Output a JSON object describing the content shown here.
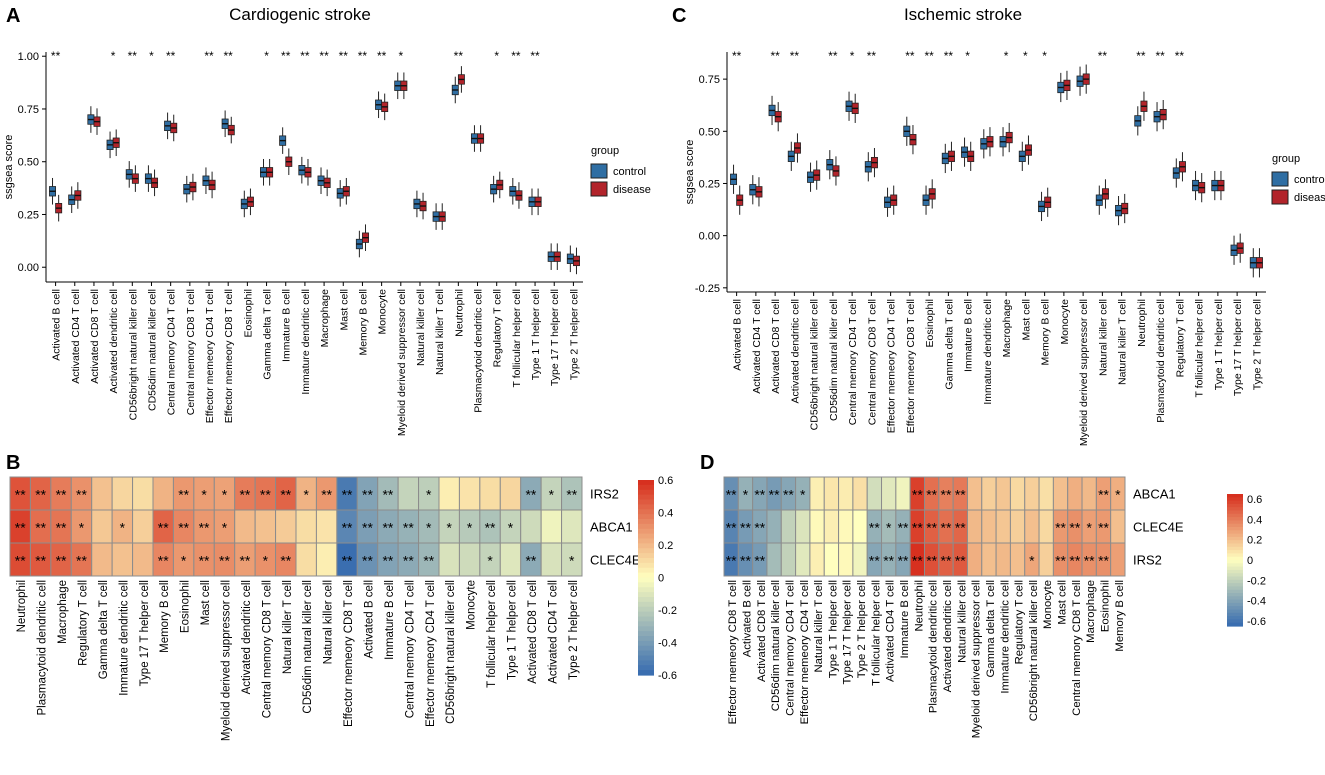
{
  "colors": {
    "control": "#2f6ea3",
    "disease": "#b2242b",
    "heat_high": "#d7301f",
    "heat_mid": "#ffffbf",
    "heat_low": "#3a6eb0",
    "grid": "#8c8c8c"
  },
  "chart_data": [
    {
      "panel_letter": "A",
      "type": "box",
      "title": "Cardiogenic stroke",
      "xlabel": "",
      "ylabel": "ssgsea score",
      "ylim": [
        -0.07,
        1.02
      ],
      "yticks": [
        "0.00",
        "0.25",
        "0.50",
        "0.75",
        "1.00"
      ],
      "legend": {
        "title": "group",
        "items": [
          "control",
          "disease"
        ],
        "position": "right"
      },
      "categories": [
        "Activated B cell",
        "Activated CD4 T cell",
        "Activated CD8 T cell",
        "Activated dendritic cell",
        "CD56bright natural killer cell",
        "CD56dim natural killer cell",
        "Central memory CD4 T cell",
        "Central memory CD8 T cell",
        "Effector memeory CD4 T cell",
        "Effector memeory CD8 T cell",
        "Eosinophil",
        "Gamma delta T cell",
        "Immature  B cell",
        "Immature dendritic cell",
        "Macrophage",
        "Mast cell",
        "Memory B cell",
        "Monocyte",
        "Myeloid derived suppressor cell",
        "Natural killer cell",
        "Natural killer T cell",
        "Neutrophil",
        "Plasmacytoid dendritic cell",
        "Regulatory T cell",
        "T follicular helper cell",
        "Type 1 T helper cell",
        "Type 17 T helper cell",
        "Type 2 T helper cell"
      ],
      "significance": [
        "**",
        "",
        "",
        "*",
        "**",
        "*",
        "**",
        "",
        "**",
        "**",
        "",
        "*",
        "**",
        "**",
        "**",
        "**",
        "**",
        "**",
        "*",
        "",
        "",
        "**",
        "",
        "*",
        "**",
        "**",
        "",
        ""
      ],
      "series": [
        {
          "name": "control",
          "values": [
            0.36,
            0.32,
            0.7,
            0.58,
            0.44,
            0.42,
            0.67,
            0.37,
            0.41,
            0.68,
            0.3,
            0.45,
            0.6,
            0.46,
            0.41,
            0.35,
            0.11,
            0.77,
            0.86,
            0.3,
            0.24,
            0.84,
            0.61,
            0.37,
            0.36,
            0.31,
            0.05,
            0.04
          ]
        },
        {
          "name": "disease",
          "values": [
            0.28,
            0.34,
            0.69,
            0.59,
            0.42,
            0.4,
            0.66,
            0.38,
            0.39,
            0.65,
            0.31,
            0.45,
            0.5,
            0.45,
            0.4,
            0.36,
            0.14,
            0.76,
            0.86,
            0.29,
            0.24,
            0.89,
            0.61,
            0.39,
            0.34,
            0.31,
            0.05,
            0.03
          ]
        }
      ]
    },
    {
      "panel_letter": "C",
      "type": "box",
      "title": "Ischemic stroke",
      "xlabel": "",
      "ylabel": "ssgsea score",
      "ylim": [
        -0.27,
        0.88
      ],
      "yticks": [
        "-0.25",
        "0.00",
        "0.25",
        "0.50",
        "0.75"
      ],
      "legend": {
        "title": "group",
        "items": [
          "control",
          "disease"
        ],
        "position": "right"
      },
      "categories": [
        "Activated B cell",
        "Activated CD4 T cell",
        "Activated CD8 T cell",
        "Activated dendritic cell",
        "CD56bright natural killer cell",
        "CD56dim natural killer cell",
        "Central memory CD4 T cell",
        "Central memory CD8 T cell",
        "Effector memeory CD4 T cell",
        "Effector memeory CD8 T cell",
        "Eosinophil",
        "Gamma delta T cell",
        "Immature  B cell",
        "Immature dendritic cell",
        "Macrophage",
        "Mast cell",
        "Memory B cell",
        "Monocyte",
        "Myeloid derived suppressor cell",
        "Natural killer cell",
        "Natural killer T cell",
        "Neutrophil",
        "Plasmacytoid dendritic cell",
        "Regulatory T cell",
        "T follicular helper cell",
        "Type 1 T helper cell",
        "Type 17 T helper cell",
        "Type 2 T helper cell"
      ],
      "significance": [
        "**",
        "",
        "**",
        "**",
        "",
        "**",
        "*",
        "**",
        "",
        "**",
        "**",
        "**",
        "*",
        "",
        "*",
        "*",
        "*",
        "",
        "",
        "**",
        "",
        "**",
        "**",
        "**",
        "",
        "",
        "",
        ""
      ],
      "series": [
        {
          "name": "control",
          "values": [
            0.27,
            0.22,
            0.6,
            0.38,
            0.28,
            0.34,
            0.62,
            0.33,
            0.16,
            0.5,
            0.17,
            0.37,
            0.4,
            0.44,
            0.45,
            0.38,
            0.14,
            0.71,
            0.74,
            0.17,
            0.12,
            0.55,
            0.57,
            0.3,
            0.24,
            0.24,
            -0.07,
            -0.13
          ]
        },
        {
          "name": "disease",
          "values": [
            0.17,
            0.21,
            0.57,
            0.42,
            0.29,
            0.31,
            0.61,
            0.35,
            0.17,
            0.46,
            0.2,
            0.38,
            0.38,
            0.45,
            0.47,
            0.41,
            0.16,
            0.72,
            0.75,
            0.2,
            0.13,
            0.62,
            0.58,
            0.33,
            0.23,
            0.24,
            -0.06,
            -0.13
          ]
        }
      ]
    },
    {
      "panel_letter": "B",
      "type": "heatmap",
      "title": "",
      "rows": [
        "IRS2",
        "ABCA1",
        "CLEC4E"
      ],
      "columns": [
        "Neutrophil",
        "Plasmacytoid dendritic cell",
        "Macrophage",
        "Regulatory T cell",
        "Gamma delta T cell",
        "Immature dendritic cell",
        "Type 17 T helper cell",
        "Memory B cell",
        "Eosinophil",
        "Mast cell",
        "Myeloid derived suppressor cell",
        "Activated dendritic cell",
        "Central memory CD8 T cell",
        "Natural killer T cell",
        "CD56dim natural killer cell",
        "Natural killer cell",
        "Effector memeory CD8 T cell",
        "Activated B cell",
        "Immature  B cell",
        "Central memory CD4 T cell",
        "Effector memeory CD4 T cell",
        "CD56bright natural killer cell",
        "Monocyte",
        "T follicular helper cell",
        "Type 1 T helper cell",
        "Activated CD8 T cell",
        "Activated CD4 T cell",
        "Type 2 T helper cell"
      ],
      "values": [
        [
          0.5,
          0.45,
          0.38,
          0.32,
          0.18,
          0.12,
          0.1,
          0.22,
          0.3,
          0.28,
          0.27,
          0.38,
          0.4,
          0.45,
          0.22,
          0.3,
          -0.55,
          -0.38,
          -0.28,
          -0.18,
          -0.2,
          0.05,
          0.08,
          0.1,
          0.12,
          -0.35,
          -0.18,
          -0.25
        ],
        [
          0.55,
          0.42,
          0.4,
          0.3,
          0.16,
          0.22,
          0.14,
          0.45,
          0.35,
          0.3,
          0.28,
          0.2,
          0.18,
          0.15,
          0.1,
          0.08,
          -0.5,
          -0.4,
          -0.35,
          -0.32,
          -0.28,
          -0.18,
          -0.22,
          -0.25,
          -0.18,
          -0.15,
          -0.05,
          -0.1
        ],
        [
          0.52,
          0.48,
          0.45,
          0.4,
          0.2,
          0.18,
          0.2,
          0.35,
          0.3,
          0.32,
          0.33,
          0.28,
          0.32,
          0.35,
          0.1,
          0.05,
          -0.6,
          -0.45,
          -0.38,
          -0.35,
          -0.3,
          -0.12,
          -0.15,
          -0.18,
          -0.1,
          -0.35,
          -0.12,
          -0.15
        ]
      ],
      "annotations": [
        [
          "**",
          "**",
          "**",
          "**",
          "",
          "",
          "",
          "",
          "**",
          "*",
          "*",
          "**",
          "**",
          "**",
          "*",
          "**",
          "**",
          "**",
          "**",
          "",
          "*",
          "",
          "",
          "",
          "",
          "**",
          "*",
          "**"
        ],
        [
          "**",
          "**",
          "**",
          "*",
          "",
          "*",
          "",
          "**",
          "**",
          "**",
          "*",
          "",
          "",
          "",
          "",
          "",
          "**",
          "**",
          "**",
          "**",
          "*",
          "*",
          "*",
          "**",
          "*",
          "",
          "",
          ""
        ],
        [
          "**",
          "**",
          "**",
          "**",
          "",
          "",
          "",
          "**",
          "*",
          "**",
          "**",
          "**",
          "*",
          "**",
          "",
          "",
          "**",
          "**",
          "**",
          "**",
          "**",
          "",
          "",
          "*",
          "",
          "**",
          "",
          "*"
        ]
      ],
      "colorbar": {
        "ticks": [
          "0.6",
          "0.4",
          "0.2",
          "0",
          "-0.2",
          "-0.4",
          "-0.6"
        ],
        "range": [
          -0.6,
          0.6
        ]
      }
    },
    {
      "panel_letter": "D",
      "type": "heatmap",
      "title": "",
      "rows": [
        "ABCA1",
        "CLEC4E",
        "IRS2"
      ],
      "columns": [
        "Effector memeory CD8 T cell",
        "Activated B cell",
        "Activated CD8 T cell",
        "CD56dim natural killer cell",
        "Central memory CD4 T cell",
        "Effector memeory CD4 T cell",
        "Natural killer T cell",
        "Type 1 T helper cell",
        "Type 17 T helper cell",
        "Type 2 T helper cell",
        "T follicular helper cell",
        "Activated CD4 T cell",
        "Immature  B cell",
        "Neutrophil",
        "Plasmacytoid dendritic cell",
        "Activated dendritic cell",
        "Natural killer cell",
        "Myeloid derived suppressor cell",
        "Gamma delta T cell",
        "Immature dendritic cell",
        "Regulatory T cell",
        "CD56bright natural killer cell",
        "Monocyte",
        "Mast cell",
        "Central memory CD8 T cell",
        "Macrophage",
        "Eosinophil",
        "Memory B cell"
      ],
      "values": [
        [
          -0.5,
          -0.35,
          -0.4,
          -0.45,
          -0.4,
          -0.35,
          0.05,
          0.08,
          0.06,
          0.1,
          -0.15,
          -0.1,
          -0.05,
          0.6,
          0.45,
          0.4,
          0.42,
          0.2,
          0.15,
          0.18,
          0.12,
          0.15,
          0.1,
          0.2,
          0.25,
          0.22,
          0.3,
          0.25
        ],
        [
          -0.55,
          -0.45,
          -0.4,
          -0.35,
          -0.2,
          -0.12,
          0.02,
          0.05,
          0.02,
          0.0,
          -0.35,
          -0.3,
          -0.35,
          0.6,
          0.5,
          0.45,
          0.48,
          0.22,
          0.2,
          0.18,
          0.15,
          0.2,
          0.12,
          0.32,
          0.35,
          0.3,
          0.32,
          0.2
        ],
        [
          -0.6,
          -0.5,
          -0.45,
          -0.3,
          -0.2,
          -0.1,
          0.05,
          0.0,
          0.02,
          -0.05,
          -0.4,
          -0.35,
          -0.4,
          0.65,
          0.55,
          0.5,
          0.52,
          0.25,
          0.2,
          0.22,
          0.2,
          0.28,
          0.15,
          0.35,
          0.38,
          0.35,
          0.35,
          0.3
        ]
      ],
      "annotations": [
        [
          "**",
          "*",
          "**",
          "**",
          "**",
          "*",
          "",
          "",
          "",
          "",
          "",
          "",
          "",
          "**",
          "**",
          "**",
          "**",
          "",
          "",
          "",
          "",
          "",
          "",
          "",
          "",
          "",
          "**",
          "*"
        ],
        [
          "**",
          "**",
          "**",
          "",
          "",
          "",
          "",
          "",
          "",
          "",
          "**",
          "*",
          "**",
          "**",
          "**",
          "**",
          "**",
          "",
          "",
          "",
          "",
          "",
          "",
          "**",
          "**",
          "*",
          "**",
          ""
        ],
        [
          "**",
          "**",
          "**",
          "",
          "",
          "",
          "",
          "",
          "",
          "",
          "**",
          "**",
          "**",
          "**",
          "**",
          "**",
          "**",
          "",
          "",
          "",
          "",
          "*",
          "",
          "**",
          "**",
          "**",
          "**",
          ""
        ]
      ],
      "colorbar": {
        "ticks": [
          "0.6",
          "0.4",
          "0.2",
          "0",
          "-0.2",
          "-0.4",
          "-0.6"
        ],
        "range": [
          -0.65,
          0.65
        ]
      }
    }
  ]
}
